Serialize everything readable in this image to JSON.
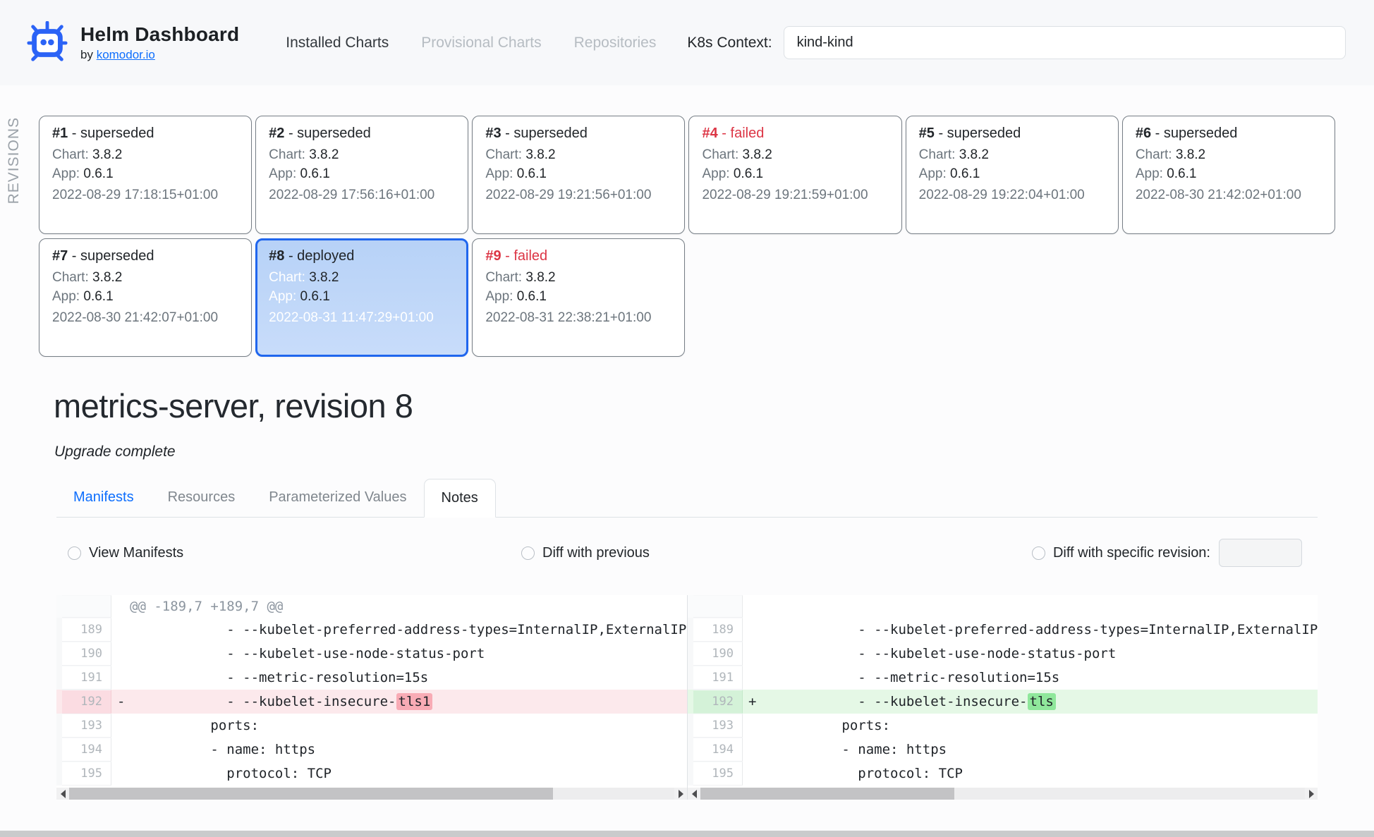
{
  "header": {
    "app_title": "Helm Dashboard",
    "byline_prefix": "by ",
    "byline_link": "komodor.io",
    "nav": [
      {
        "label": "Installed Charts",
        "state": "normal"
      },
      {
        "label": "Provisional Charts",
        "state": "disabled"
      },
      {
        "label": "Repositories",
        "state": "disabled"
      }
    ],
    "context_label": "K8s Context:",
    "context_value": "kind-kind"
  },
  "revisions": {
    "section_label": "REVISIONS",
    "chart_label": "Chart: ",
    "app_label": "App: ",
    "cards": [
      {
        "number": "#1",
        "status": "superseded",
        "chart": "3.8.2",
        "app": "0.6.1",
        "date": "2022-08-29 17:18:15+01:00",
        "selected": false
      },
      {
        "number": "#2",
        "status": "superseded",
        "chart": "3.8.2",
        "app": "0.6.1",
        "date": "2022-08-29 17:56:16+01:00",
        "selected": false
      },
      {
        "number": "#3",
        "status": "superseded",
        "chart": "3.8.2",
        "app": "0.6.1",
        "date": "2022-08-29 19:21:56+01:00",
        "selected": false
      },
      {
        "number": "#4",
        "status": "failed",
        "chart": "3.8.2",
        "app": "0.6.1",
        "date": "2022-08-29 19:21:59+01:00",
        "selected": false
      },
      {
        "number": "#5",
        "status": "superseded",
        "chart": "3.8.2",
        "app": "0.6.1",
        "date": "2022-08-29 19:22:04+01:00",
        "selected": false
      },
      {
        "number": "#6",
        "status": "superseded",
        "chart": "3.8.2",
        "app": "0.6.1",
        "date": "2022-08-30 21:42:02+01:00",
        "selected": false
      },
      {
        "number": "#7",
        "status": "superseded",
        "chart": "3.8.2",
        "app": "0.6.1",
        "date": "2022-08-30 21:42:07+01:00",
        "selected": false
      },
      {
        "number": "#8",
        "status": "deployed",
        "chart": "3.8.2",
        "app": "0.6.1",
        "date": "2022-08-31 11:47:29+01:00",
        "selected": true
      },
      {
        "number": "#9",
        "status": "failed",
        "chart": "3.8.2",
        "app": "0.6.1",
        "date": "2022-08-31 22:38:21+01:00",
        "selected": false
      }
    ]
  },
  "release": {
    "title": "metrics-server, revision 8",
    "status_text": "Upgrade complete"
  },
  "tabs": [
    {
      "label": "Manifests",
      "state": "link"
    },
    {
      "label": "Resources",
      "state": "muted"
    },
    {
      "label": "Parameterized Values",
      "state": "muted"
    },
    {
      "label": "Notes",
      "state": "active"
    }
  ],
  "diff_options": [
    {
      "label": "View Manifests",
      "selected": false,
      "has_input": false
    },
    {
      "label": "Diff with previous",
      "selected": false,
      "has_input": false
    },
    {
      "label": "Diff with specific revision:",
      "selected": false,
      "has_input": true,
      "input_value": ""
    }
  ],
  "diff": {
    "left": {
      "scrollbar_thumb_pct": 80,
      "rows": [
        {
          "num": "",
          "type": "info",
          "prefix": "",
          "code": "@@ -189,7 +189,7 @@",
          "highlight": ""
        },
        {
          "num": "189",
          "type": "ctx",
          "prefix": "",
          "code": "            - --kubelet-preferred-address-types=InternalIP,ExternalIP,Hostname",
          "highlight": ""
        },
        {
          "num": "190",
          "type": "ctx",
          "prefix": "",
          "code": "            - --kubelet-use-node-status-port",
          "highlight": ""
        },
        {
          "num": "191",
          "type": "ctx",
          "prefix": "",
          "code": "            - --metric-resolution=15s",
          "highlight": ""
        },
        {
          "num": "192",
          "type": "del",
          "prefix": "-",
          "code": "            - --kubelet-insecure-",
          "highlight": "tls1"
        },
        {
          "num": "193",
          "type": "ctx",
          "prefix": "",
          "code": "          ports:",
          "highlight": ""
        },
        {
          "num": "194",
          "type": "ctx",
          "prefix": "",
          "code": "          - name: https",
          "highlight": ""
        },
        {
          "num": "195",
          "type": "ctx",
          "prefix": "",
          "code": "            protocol: TCP",
          "highlight": ""
        }
      ]
    },
    "right": {
      "scrollbar_thumb_pct": 42,
      "rows": [
        {
          "num": "",
          "type": "info",
          "prefix": "",
          "code": "",
          "highlight": ""
        },
        {
          "num": "189",
          "type": "ctx",
          "prefix": "",
          "code": "            - --kubelet-preferred-address-types=InternalIP,ExternalIP,Hostname",
          "highlight": ""
        },
        {
          "num": "190",
          "type": "ctx",
          "prefix": "",
          "code": "            - --kubelet-use-node-status-port",
          "highlight": ""
        },
        {
          "num": "191",
          "type": "ctx",
          "prefix": "",
          "code": "            - --metric-resolution=15s",
          "highlight": ""
        },
        {
          "num": "192",
          "type": "ins",
          "prefix": "+",
          "code": "            - --kubelet-insecure-",
          "highlight": "tls"
        },
        {
          "num": "193",
          "type": "ctx",
          "prefix": "",
          "code": "          ports:",
          "highlight": ""
        },
        {
          "num": "194",
          "type": "ctx",
          "prefix": "",
          "code": "          - name: https",
          "highlight": ""
        },
        {
          "num": "195",
          "type": "ctx",
          "prefix": "",
          "code": "            protocol: TCP",
          "highlight": ""
        }
      ]
    }
  }
}
